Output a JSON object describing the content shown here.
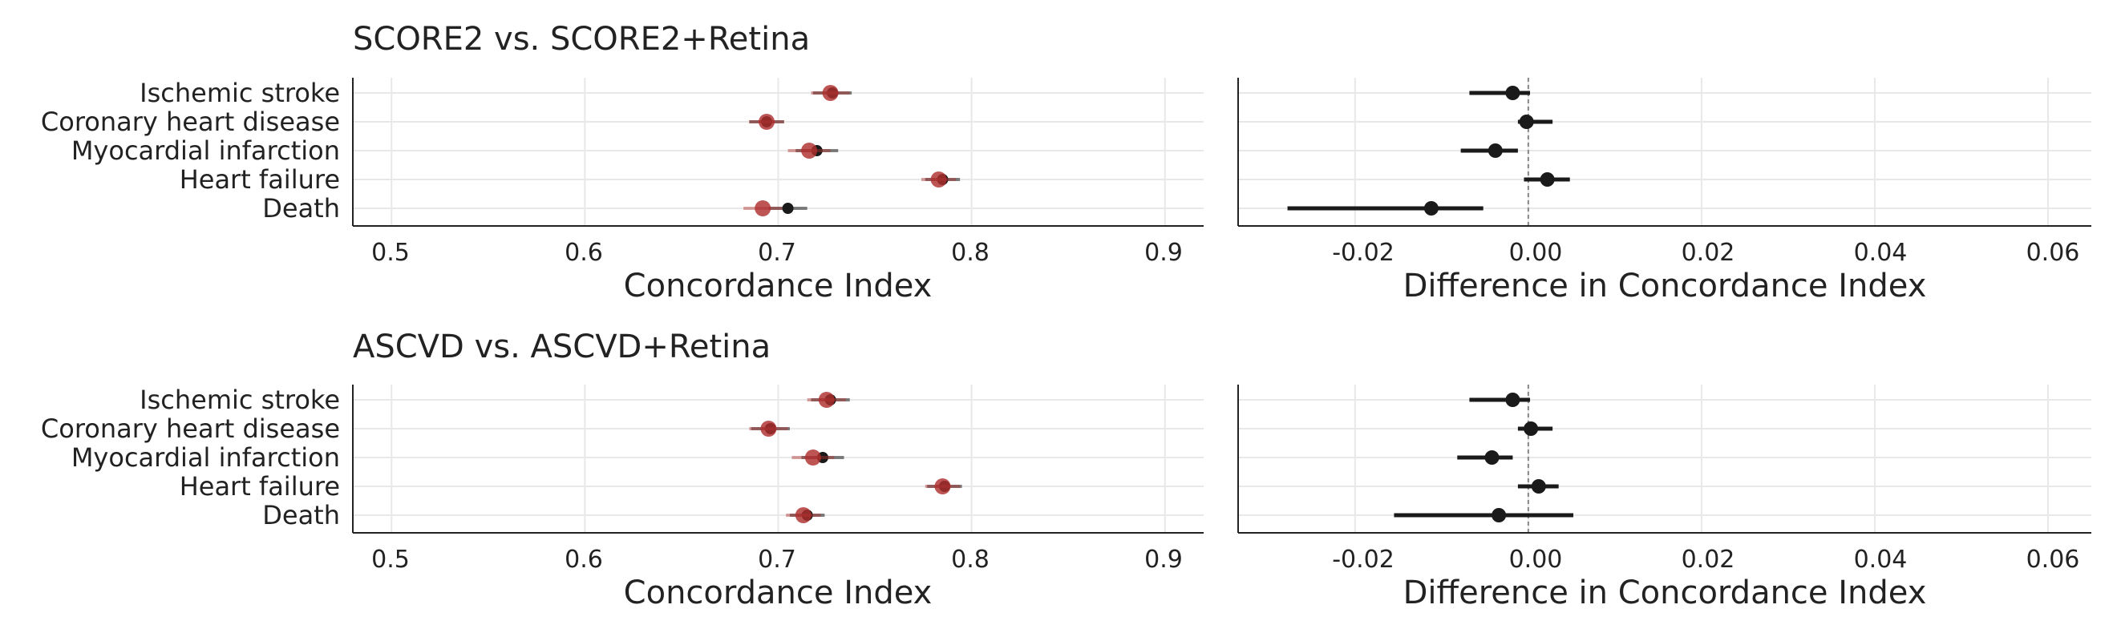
{
  "colors": {
    "baseline_point": "#1a1a1a",
    "retina_point": "#b03030",
    "gridline": "#e8e8e8",
    "axis_line": "#222222",
    "zero_line": "#888888"
  },
  "rows": [
    {
      "title": "SCORE2 vs. SCORE2+Retina",
      "left": {
        "xlabel": "Concordance Index",
        "ticks": [
          "0.5",
          "0.6",
          "0.7",
          "0.8",
          "0.9"
        ]
      },
      "right": {
        "xlabel": "Difference in Concordance Index",
        "ticks": [
          "-0.02",
          "0.00",
          "0.02",
          "0.04",
          "0.06"
        ]
      }
    },
    {
      "title": "ASCVD vs. ASCVD+Retina",
      "left": {
        "xlabel": "Concordance Index",
        "ticks": [
          "0.5",
          "0.6",
          "0.7",
          "0.8",
          "0.9"
        ]
      },
      "right": {
        "xlabel": "Difference in Concordance Index",
        "ticks": [
          "-0.02",
          "0.00",
          "0.02",
          "0.04",
          "0.06"
        ]
      }
    }
  ],
  "chart_data": [
    {
      "type": "scatter",
      "title": "SCORE2 vs. SCORE2+Retina",
      "xlabel": "Concordance Index",
      "categories": [
        "Ischemic stroke",
        "Coronary heart disease",
        "Myocardial infarction",
        "Heart failure",
        "Death"
      ],
      "xlim": [
        0.48,
        0.92
      ],
      "series": [
        {
          "name": "SCORE2",
          "color": "#1a1a1a",
          "values": [
            0.728,
            0.694,
            0.72,
            0.785,
            0.705
          ],
          "lower": [
            0.718,
            0.685,
            0.709,
            0.776,
            0.695
          ],
          "upper": [
            0.738,
            0.703,
            0.731,
            0.794,
            0.715
          ]
        },
        {
          "name": "SCORE2+Retina",
          "color": "#b03030",
          "values": [
            0.727,
            0.694,
            0.716,
            0.783,
            0.692
          ],
          "lower": [
            0.717,
            0.685,
            0.705,
            0.774,
            0.682
          ],
          "upper": [
            0.737,
            0.703,
            0.727,
            0.792,
            0.702
          ]
        }
      ],
      "grid": true
    },
    {
      "type": "scatter",
      "title": "SCORE2 vs. SCORE2+Retina",
      "xlabel": "Difference in Concordance Index",
      "categories": [
        "Ischemic stroke",
        "Coronary heart disease",
        "Myocardial infarction",
        "Heart failure",
        "Death"
      ],
      "xlim": [
        -0.0335,
        0.065
      ],
      "reference_line_x": 0.0,
      "series": [
        {
          "color": "#1a1a1a",
          "values": [
            -0.0018,
            -0.0002,
            -0.0038,
            0.0022,
            -0.0112
          ],
          "lower": [
            -0.0068,
            -0.0012,
            -0.0078,
            -0.0005,
            -0.0278
          ],
          "upper": [
            0.0002,
            0.0028,
            -0.0012,
            0.0048,
            -0.0052
          ]
        }
      ],
      "grid": true
    },
    {
      "type": "scatter",
      "title": "ASCVD vs. ASCVD+Retina",
      "xlabel": "Concordance Index",
      "categories": [
        "Ischemic stroke",
        "Coronary heart disease",
        "Myocardial infarction",
        "Heart failure",
        "Death"
      ],
      "xlim": [
        0.48,
        0.92
      ],
      "series": [
        {
          "name": "ASCVD",
          "color": "#1a1a1a",
          "values": [
            0.727,
            0.696,
            0.723,
            0.786,
            0.715
          ],
          "lower": [
            0.717,
            0.686,
            0.712,
            0.777,
            0.706
          ],
          "upper": [
            0.737,
            0.706,
            0.734,
            0.795,
            0.724
          ]
        },
        {
          "name": "ASCVD+Retina",
          "color": "#b03030",
          "values": [
            0.725,
            0.695,
            0.718,
            0.785,
            0.713
          ],
          "lower": [
            0.715,
            0.685,
            0.707,
            0.776,
            0.704
          ],
          "upper": [
            0.735,
            0.705,
            0.729,
            0.794,
            0.722
          ]
        }
      ],
      "grid": true
    },
    {
      "type": "scatter",
      "title": "ASCVD vs. ASCVD+Retina",
      "xlabel": "Difference in Concordance Index",
      "categories": [
        "Ischemic stroke",
        "Coronary heart disease",
        "Myocardial infarction",
        "Heart failure",
        "Death"
      ],
      "xlim": [
        -0.0335,
        0.065
      ],
      "reference_line_x": 0.0,
      "series": [
        {
          "color": "#1a1a1a",
          "values": [
            -0.0018,
            0.0003,
            -0.0042,
            0.0012,
            -0.0034
          ],
          "lower": [
            -0.0068,
            -0.0012,
            -0.0082,
            -0.0012,
            -0.0155
          ],
          "upper": [
            0.0002,
            0.0028,
            -0.0018,
            0.0035,
            0.0052
          ]
        }
      ],
      "grid": true
    }
  ]
}
